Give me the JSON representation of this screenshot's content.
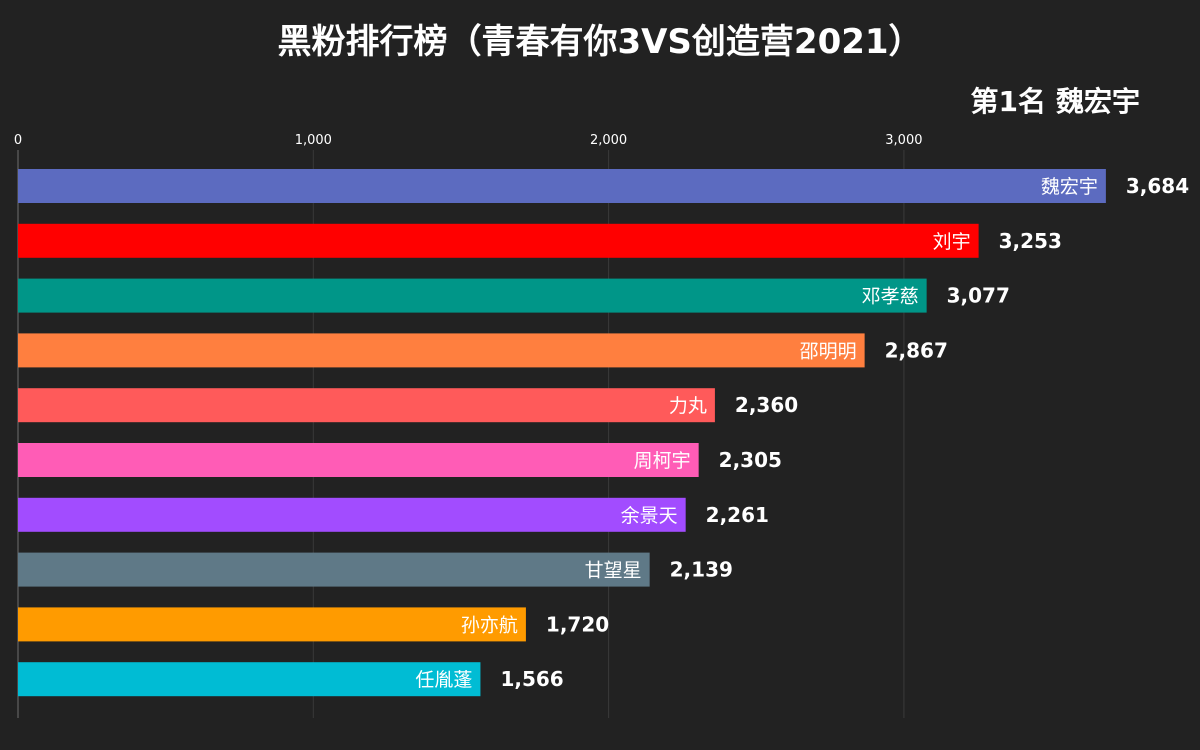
{
  "header": {
    "title": "黑粉排行榜（青春有你3VS创造营2021）",
    "rank_prefix": "第1名",
    "rank_name": "魏宏宇"
  },
  "chart_data": {
    "type": "bar",
    "orientation": "horizontal",
    "title": "黑粉排行榜（青春有你3VS创造营2021）",
    "xlabel": "",
    "ylabel": "",
    "xlim": [
      0,
      3700
    ],
    "ticks": [
      0,
      1000,
      2000,
      3000
    ],
    "tick_labels": [
      "0",
      "1,000",
      "2,000",
      "3,000"
    ],
    "grid": true,
    "categories": [
      "魏宏宇",
      "刘宇",
      "邓孝慈",
      "邵明明",
      "力丸",
      "周柯宇",
      "余景天",
      "甘望星",
      "孙亦航",
      "任胤蓬"
    ],
    "values": [
      3684,
      3253,
      3077,
      2867,
      2360,
      2305,
      2261,
      2139,
      1720,
      1566
    ],
    "value_labels": [
      "3,684",
      "3,253",
      "3,077",
      "2,867",
      "2,360",
      "2,305",
      "2,261",
      "2,139",
      "1,720",
      "1,566"
    ],
    "colors": [
      "#5c6bc0",
      "#ff0000",
      "#009688",
      "#ff7f3f",
      "#ff5a5a",
      "#ff5cb6",
      "#a24cff",
      "#5f7987",
      "#ff9b00",
      "#00bcd4"
    ],
    "bar_name_color": "#ffffff",
    "value_label_color": "#ffffff",
    "grid_color": "#3a3a3a",
    "background": "#222222"
  }
}
